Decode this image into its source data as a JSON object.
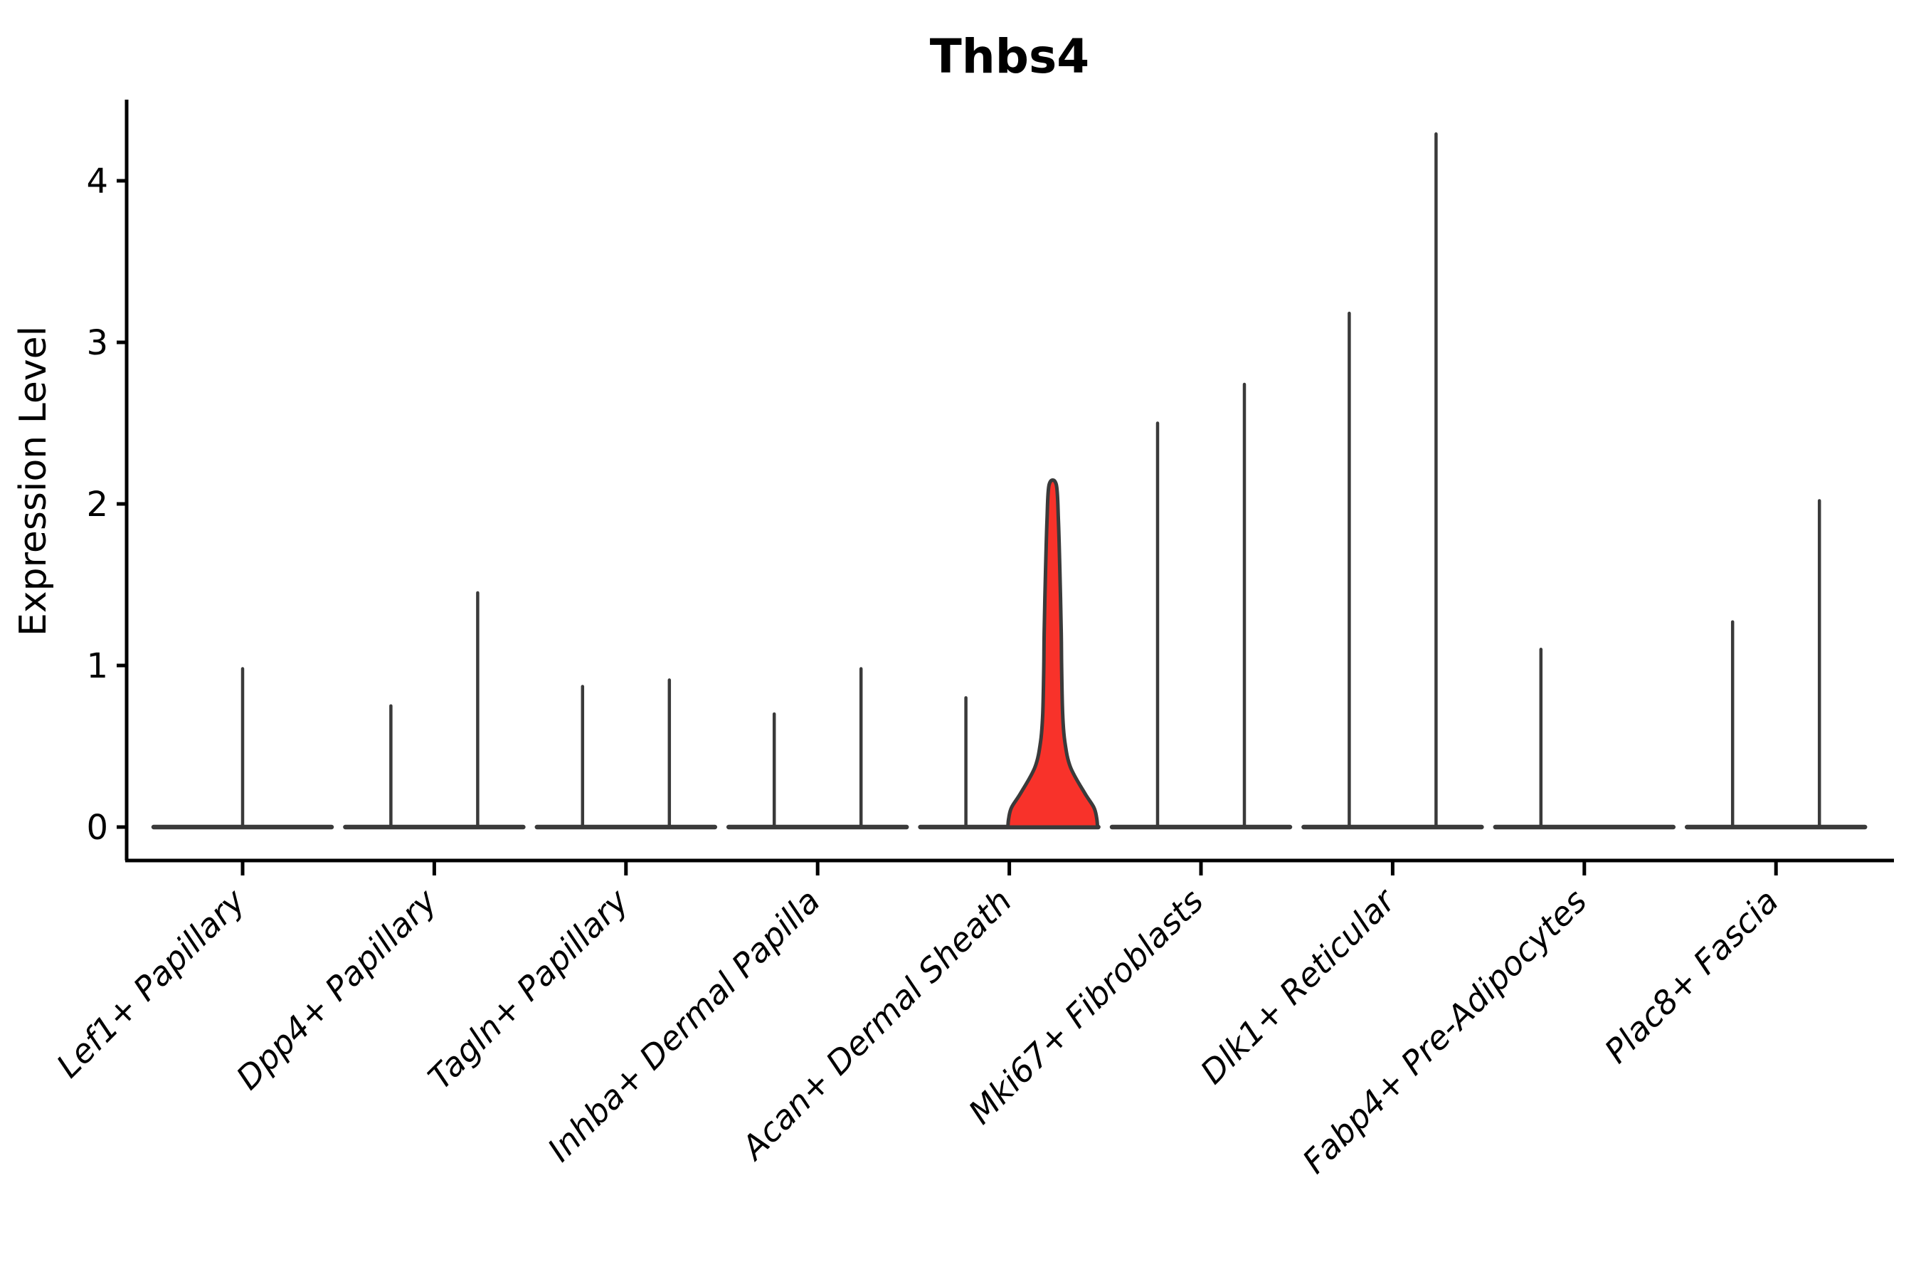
{
  "title": "Thbs4",
  "chart_data": {
    "type": "violin",
    "title": "Thbs4",
    "xlabel": "",
    "ylabel": "Expression Level",
    "ylim": [
      -0.21,
      4.5
    ],
    "yticks": [
      0,
      1,
      2,
      3,
      4
    ],
    "grid": false,
    "legend": "none",
    "categories": [
      "Lef1+ Papillary",
      "Dpp4+ Papillary",
      "Tagln+ Papillary",
      "Inhba+ Dermal Papilla",
      "Acan+ Dermal Sheath",
      "Mki67+ Fibroblasts",
      "Dlk1+ Reticular",
      "Fabp4+ Pre-Adipocytes",
      "Plac8+ Fascia"
    ],
    "groups": [
      {
        "label": "Lef1+ Papillary",
        "violins": [
          {
            "position": "center",
            "max_expression": 0.98
          }
        ]
      },
      {
        "label": "Dpp4+ Papillary",
        "violins": [
          {
            "position": "left",
            "max_expression": 0.75
          },
          {
            "position": "right",
            "max_expression": 1.45
          }
        ]
      },
      {
        "label": "Tagln+ Papillary",
        "violins": [
          {
            "position": "left",
            "max_expression": 0.87
          },
          {
            "position": "right",
            "max_expression": 0.91
          }
        ]
      },
      {
        "label": "Inhba+ Dermal Papilla",
        "violins": [
          {
            "position": "left",
            "max_expression": 0.7
          },
          {
            "position": "right",
            "max_expression": 0.98
          }
        ]
      },
      {
        "label": "Acan+ Dermal Sheath",
        "violins": [
          {
            "position": "left",
            "max_expression": 0.8
          },
          {
            "position": "right",
            "max_expression": 2.12,
            "highlighted": true,
            "profile_half_widths": [
              [
                0,
                63
              ],
              [
                0.05,
                62
              ],
              [
                0.12,
                58
              ],
              [
                0.21,
                45
              ],
              [
                0.37,
                25
              ],
              [
                0.53,
                17
              ],
              [
                0.7,
                14
              ],
              [
                1.0,
                12.5
              ],
              [
                1.2,
                12
              ],
              [
                1.6,
                10
              ],
              [
                1.9,
                8
              ],
              [
                2.12,
                5
              ]
            ]
          }
        ]
      },
      {
        "label": "Mki67+ Fibroblasts",
        "violins": [
          {
            "position": "left",
            "max_expression": 2.5
          },
          {
            "position": "right",
            "max_expression": 2.74
          }
        ]
      },
      {
        "label": "Dlk1+ Reticular",
        "violins": [
          {
            "position": "left",
            "max_expression": 3.18
          },
          {
            "position": "right",
            "max_expression": 4.29
          }
        ]
      },
      {
        "label": "Fabp4+ Pre-Adipocytes",
        "violins": [
          {
            "position": "left",
            "max_expression": 1.1
          },
          {
            "position": "right",
            "max_expression": 0
          }
        ]
      },
      {
        "label": "Plac8+ Fascia",
        "violins": [
          {
            "position": "left",
            "max_expression": 1.27
          },
          {
            "position": "right",
            "max_expression": 2.02
          }
        ]
      }
    ],
    "colors": {
      "violin_line": "#3A3A3A",
      "highlight_fill": "#F8322A",
      "axis": "#000000",
      "background": "#FFFFFF"
    }
  }
}
